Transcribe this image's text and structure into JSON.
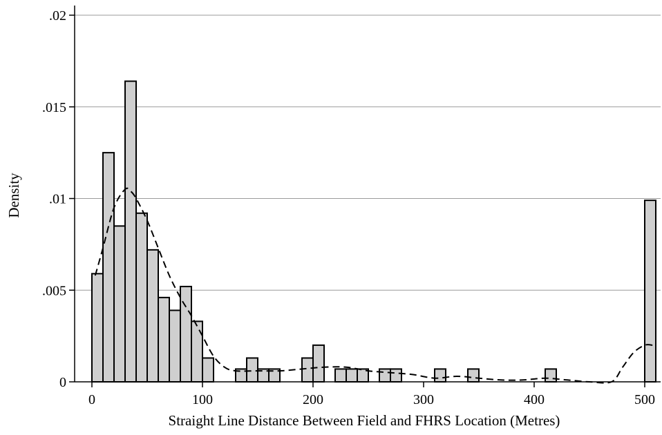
{
  "chart_data": {
    "type": "bar",
    "subtype": "histogram-with-kernel-density",
    "xlabel": "Straight Line Distance Between Field and FHRS Location (Metres)",
    "ylabel": "Density",
    "xlim": [
      -10,
      515
    ],
    "ylim": [
      0,
      0.02
    ],
    "x_ticks": [
      0,
      100,
      200,
      300,
      400,
      500
    ],
    "x_tick_labels": [
      "0",
      "100",
      "200",
      "300",
      "400",
      "500"
    ],
    "y_ticks": [
      0,
      0.005,
      0.01,
      0.015,
      0.02
    ],
    "y_tick_labels": [
      "0",
      ".005",
      ".01",
      ".015",
      ".02"
    ],
    "grid": "horizontal",
    "bin_width": 10,
    "bins": [
      {
        "x0": 0,
        "value": 0.0059
      },
      {
        "x0": 10,
        "value": 0.0125
      },
      {
        "x0": 20,
        "value": 0.0085
      },
      {
        "x0": 30,
        "value": 0.0164
      },
      {
        "x0": 40,
        "value": 0.0092
      },
      {
        "x0": 50,
        "value": 0.0072
      },
      {
        "x0": 60,
        "value": 0.0046
      },
      {
        "x0": 70,
        "value": 0.0039
      },
      {
        "x0": 80,
        "value": 0.0052
      },
      {
        "x0": 90,
        "value": 0.0033
      },
      {
        "x0": 100,
        "value": 0.0013
      },
      {
        "x0": 130,
        "value": 0.0007
      },
      {
        "x0": 140,
        "value": 0.0013
      },
      {
        "x0": 150,
        "value": 0.0007
      },
      {
        "x0": 160,
        "value": 0.0007
      },
      {
        "x0": 190,
        "value": 0.0013
      },
      {
        "x0": 200,
        "value": 0.002
      },
      {
        "x0": 220,
        "value": 0.0007
      },
      {
        "x0": 230,
        "value": 0.0007
      },
      {
        "x0": 240,
        "value": 0.0007
      },
      {
        "x0": 260,
        "value": 0.0007
      },
      {
        "x0": 270,
        "value": 0.0007
      },
      {
        "x0": 310,
        "value": 0.0007
      },
      {
        "x0": 340,
        "value": 0.0007
      },
      {
        "x0": 410,
        "value": 0.0007
      },
      {
        "x0": 500,
        "value": 0.0099
      }
    ],
    "density_curve": {
      "style": "dashed",
      "x": [
        3,
        10,
        20,
        30,
        35,
        40,
        50,
        60,
        70,
        80,
        90,
        100,
        110,
        120,
        130,
        150,
        170,
        190,
        210,
        230,
        250,
        270,
        290,
        310,
        330,
        350,
        370,
        390,
        410,
        430,
        450,
        470,
        480,
        490,
        500,
        507
      ],
      "y": [
        0.0058,
        0.0073,
        0.0095,
        0.0105,
        0.0104,
        0.01,
        0.0088,
        0.0073,
        0.0058,
        0.0046,
        0.0036,
        0.0025,
        0.0014,
        0.0008,
        0.0006,
        0.0006,
        0.0006,
        0.0007,
        0.0008,
        0.0008,
        0.0006,
        0.0005,
        0.0004,
        0.0002,
        0.0003,
        0.0002,
        0.0001,
        0.0001,
        0.0002,
        0.0001,
        0.0,
        0.0,
        0.0008,
        0.0016,
        0.002,
        0.002
      ]
    }
  }
}
